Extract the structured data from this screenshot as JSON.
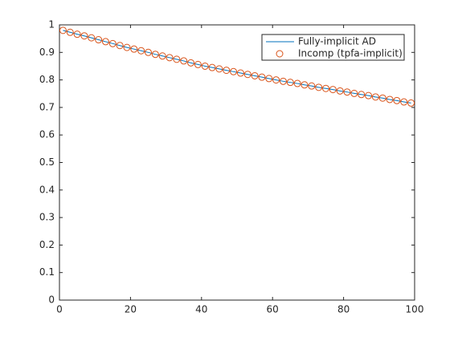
{
  "chart_data": {
    "type": "line",
    "x": [
      1,
      3,
      5,
      7,
      9,
      11,
      13,
      15,
      17,
      19,
      21,
      23,
      25,
      27,
      29,
      31,
      33,
      35,
      37,
      39,
      41,
      43,
      45,
      47,
      49,
      51,
      53,
      55,
      57,
      59,
      61,
      63,
      65,
      67,
      69,
      71,
      73,
      75,
      77,
      79,
      81,
      83,
      85,
      87,
      89,
      91,
      93,
      95,
      97,
      99
    ],
    "series": [
      {
        "name": "Fully-implicit AD",
        "color": "#0072bd",
        "marker": "none",
        "values": [
          0.98,
          0.973,
          0.966,
          0.96,
          0.953,
          0.946,
          0.939,
          0.932,
          0.925,
          0.918,
          0.912,
          0.906,
          0.9,
          0.893,
          0.887,
          0.881,
          0.875,
          0.869,
          0.862,
          0.856,
          0.85,
          0.845,
          0.84,
          0.835,
          0.83,
          0.825,
          0.82,
          0.815,
          0.81,
          0.805,
          0.8,
          0.795,
          0.791,
          0.787,
          0.782,
          0.778,
          0.773,
          0.769,
          0.765,
          0.76,
          0.756,
          0.751,
          0.747,
          0.743,
          0.738,
          0.734,
          0.729,
          0.725,
          0.72,
          0.716
        ]
      },
      {
        "name": "Incomp (tpfa-implicit)",
        "color": "#d95319",
        "marker": "circle",
        "values": [
          0.98,
          0.973,
          0.966,
          0.96,
          0.953,
          0.946,
          0.939,
          0.932,
          0.925,
          0.918,
          0.912,
          0.906,
          0.9,
          0.893,
          0.887,
          0.881,
          0.875,
          0.869,
          0.862,
          0.856,
          0.85,
          0.845,
          0.84,
          0.835,
          0.83,
          0.825,
          0.82,
          0.815,
          0.81,
          0.805,
          0.8,
          0.795,
          0.791,
          0.787,
          0.782,
          0.778,
          0.773,
          0.769,
          0.765,
          0.76,
          0.756,
          0.751,
          0.747,
          0.743,
          0.738,
          0.734,
          0.729,
          0.725,
          0.72,
          0.716
        ]
      }
    ],
    "xlim": [
      0,
      100
    ],
    "xticks": [
      0,
      20,
      40,
      60,
      80,
      100
    ],
    "ylim": [
      0,
      1
    ],
    "yticks": [
      0,
      0.1,
      0.2,
      0.3,
      0.4,
      0.5,
      0.6,
      0.7,
      0.8,
      0.9,
      1
    ],
    "legend": "top-right"
  }
}
